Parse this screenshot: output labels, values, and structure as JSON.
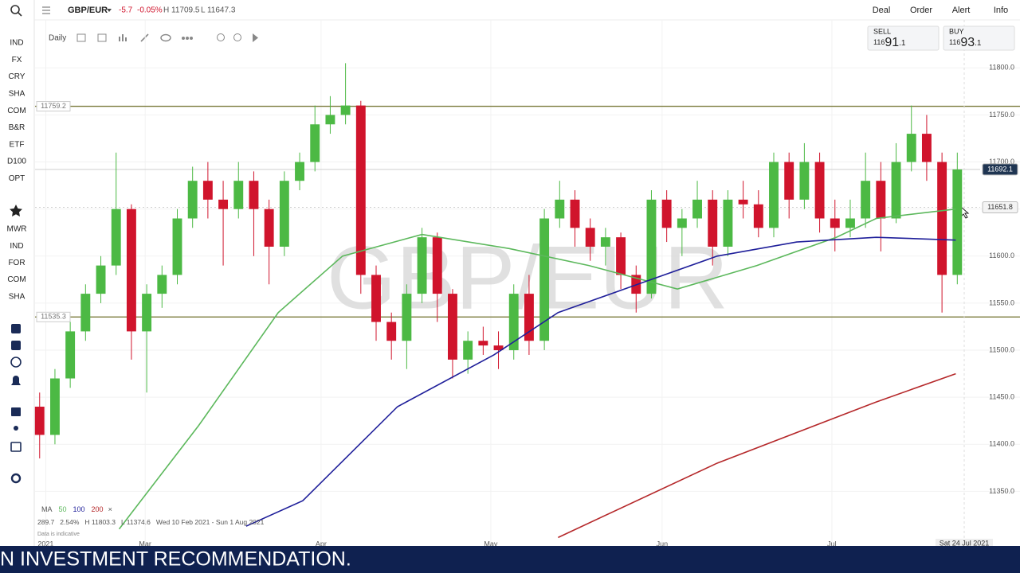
{
  "header": {
    "symbol": "GBP/EUR",
    "change": "-5.7",
    "change_pct": "-0.05%",
    "high": "H 11709.5",
    "low": "L 11647.3",
    "menu": [
      "Deal",
      "Order",
      "Alert",
      "Info"
    ]
  },
  "toolbar": {
    "interval": "Daily"
  },
  "sidebar": {
    "items": [
      "IND",
      "FX",
      "CRY",
      "SHA",
      "COM",
      "B&R",
      "ETF",
      "D100",
      "OPT"
    ],
    "watchlist": [
      "MWR",
      "IND",
      "FOR",
      "COM",
      "SHA"
    ]
  },
  "quotes": {
    "sell": {
      "label": "SELL",
      "parts": [
        "116",
        "91",
        ".1"
      ]
    },
    "buy": {
      "label": "BUY",
      "parts": [
        "116",
        "93",
        ".1"
      ]
    }
  },
  "legend_info": {
    "ma": "MA",
    "close_x": "×",
    "stats": [
      "289.7",
      "2.54%",
      "H 11803.3",
      "L 11374.6",
      "Wed 10 Feb 2021 - Sun 1 Aug 2021"
    ],
    "note": "Data is indicative"
  },
  "banner": "N INVESTMENT RECOMMENDATION.",
  "chart_data": {
    "type": "candlestick",
    "title": "GBP/EUR",
    "x": [
      0,
      1,
      2,
      3,
      4,
      5,
      6,
      7,
      8,
      9,
      10,
      11,
      12,
      13,
      14,
      15,
      16,
      17,
      18,
      19,
      20,
      21,
      22,
      23,
      24,
      25,
      26,
      27,
      28,
      29,
      30,
      31,
      32,
      33,
      34,
      35,
      36,
      37,
      38,
      39,
      40,
      41,
      42,
      43,
      44,
      45,
      46,
      47,
      48,
      49,
      50,
      51,
      52,
      53,
      54,
      55,
      56,
      57,
      58,
      59,
      60
    ],
    "open": [
      11440,
      11410,
      11470,
      11520,
      11560,
      11590,
      11650,
      11520,
      11560,
      11580,
      11640,
      11680,
      11660,
      11650,
      11680,
      11650,
      11610,
      11680,
      11700,
      11740,
      11750,
      11760,
      11580,
      11530,
      11510,
      11560,
      11620,
      11560,
      11490,
      11510,
      11505,
      11500,
      11560,
      11510,
      11640,
      11660,
      11630,
      11610,
      11620,
      11580,
      11560,
      11660,
      11630,
      11640,
      11660,
      11610,
      11660,
      11655,
      11630,
      11700,
      11660,
      11700,
      11640,
      11630,
      11640,
      11680,
      11640,
      11700,
      11730,
      11700,
      11580
    ],
    "high": [
      11455,
      11480,
      11530,
      11570,
      11600,
      11710,
      11655,
      11570,
      11590,
      11650,
      11695,
      11700,
      11680,
      11700,
      11690,
      11660,
      11690,
      11710,
      11760,
      11770,
      11805,
      11765,
      11590,
      11540,
      11570,
      11630,
      11625,
      11565,
      11520,
      11525,
      11520,
      11570,
      11580,
      11650,
      11680,
      11670,
      11640,
      11630,
      11625,
      11590,
      11670,
      11670,
      11650,
      11680,
      11670,
      11670,
      11680,
      11670,
      11710,
      11710,
      11720,
      11710,
      11660,
      11660,
      11710,
      11700,
      11720,
      11760,
      11750,
      11710,
      11710
    ],
    "low": [
      11385,
      11400,
      11460,
      11510,
      11550,
      11580,
      11490,
      11455,
      11545,
      11570,
      11630,
      11640,
      11590,
      11640,
      11600,
      11570,
      11600,
      11670,
      11690,
      11730,
      11740,
      11560,
      11510,
      11490,
      11480,
      11550,
      11530,
      11470,
      11475,
      11495,
      11480,
      11490,
      11495,
      11500,
      11630,
      11610,
      11595,
      11590,
      11565,
      11540,
      11555,
      11615,
      11600,
      11630,
      11590,
      11600,
      11640,
      11620,
      11620,
      11640,
      11650,
      11625,
      11605,
      11620,
      11630,
      11605,
      11635,
      11690,
      11680,
      11540,
      11570
    ],
    "close": [
      11410,
      11470,
      11520,
      11560,
      11590,
      11650,
      11520,
      11560,
      11580,
      11640,
      11680,
      11660,
      11650,
      11680,
      11650,
      11610,
      11680,
      11700,
      11740,
      11750,
      11760,
      11580,
      11530,
      11510,
      11560,
      11620,
      11560,
      11490,
      11510,
      11505,
      11500,
      11560,
      11510,
      11640,
      11660,
      11630,
      11610,
      11620,
      11580,
      11560,
      11660,
      11630,
      11640,
      11660,
      11610,
      11660,
      11655,
      11630,
      11700,
      11660,
      11700,
      11640,
      11630,
      11640,
      11680,
      11640,
      11700,
      11730,
      11700,
      11580,
      11692.1
    ],
    "up_color": "#4cb944",
    "down_color": "#d0142c",
    "series": [
      {
        "name": "50",
        "color": "#5cb85c",
        "x": [
          5.2,
          10.4,
          15.6,
          19.8,
          25,
          30.7,
          35.9,
          41.7,
          46.9,
          52.1,
          54.7,
          59.9
        ],
        "values": [
          11310,
          11420,
          11540,
          11600,
          11623,
          11608,
          11590,
          11565,
          11590,
          11620,
          11640,
          11650
        ]
      },
      {
        "name": "100",
        "color": "#1f1f9a",
        "x": [
          13.5,
          17.2,
          23.4,
          29.7,
          33.9,
          39.1,
          44.3,
          49.5,
          54.7,
          59.9
        ],
        "values": [
          11313,
          11340,
          11440,
          11495,
          11540,
          11570,
          11600,
          11615,
          11620,
          11617
        ]
      },
      {
        "name": "200",
        "color": "#b5282a",
        "x": [
          33.9,
          44.3,
          54.7,
          59.9
        ],
        "values": [
          11301,
          11380,
          11445,
          11475
        ]
      }
    ],
    "levels": [
      11759.2,
      11535.3
    ],
    "price_markers": [
      11692.1,
      11651.8
    ],
    "crosshair_label": "Sat 24 Jul 2021",
    "xlim": [
      -0.3,
      64.1
    ],
    "ylim": [
      11292,
      11851
    ],
    "xticks": [
      {
        "value": 0.4,
        "label": "2021"
      },
      {
        "value": 6.9,
        "label": "Mar"
      },
      {
        "value": 18.4,
        "label": "Apr"
      },
      {
        "value": 29.5,
        "label": "May"
      },
      {
        "value": 40.7,
        "label": "Jun"
      },
      {
        "value": 51.8,
        "label": "Jul"
      }
    ],
    "yticks": [
      {
        "value": 11350,
        "label": "11350.0"
      },
      {
        "value": 11400,
        "label": "11400.0"
      },
      {
        "value": 11450,
        "label": "11450.0"
      },
      {
        "value": 11500,
        "label": "11500.0"
      },
      {
        "value": 11550,
        "label": "11550.0"
      },
      {
        "value": 11600,
        "label": "11600.0"
      },
      {
        "value": 11650,
        "label": "11650.0"
      },
      {
        "value": 11700,
        "label": "11700.0"
      },
      {
        "value": 11750,
        "label": "11750.0"
      },
      {
        "value": 11800,
        "label": "11800.0"
      }
    ],
    "grid": true
  }
}
